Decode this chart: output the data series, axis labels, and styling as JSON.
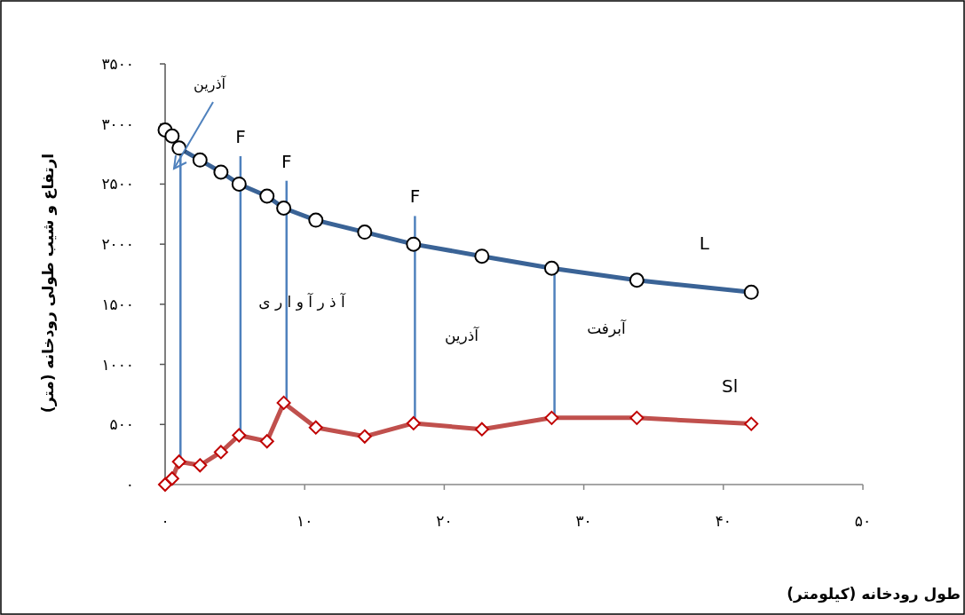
{
  "chart_data": {
    "type": "line",
    "xlabel": "طول رودخانه (کیلومتر)",
    "ylabel": "ارتفاع و شیب طولی رودخانه (متر)",
    "xlim": [
      0,
      50
    ],
    "ylim": [
      0,
      3500
    ],
    "xticks": [
      {
        "value": 0,
        "label": "۰"
      },
      {
        "value": 10,
        "label": "۱۰"
      },
      {
        "value": 20,
        "label": "۲۰"
      },
      {
        "value": 30,
        "label": "۳۰"
      },
      {
        "value": 40,
        "label": "۴۰"
      },
      {
        "value": 50,
        "label": "۵۰"
      }
    ],
    "yticks": [
      {
        "value": 0,
        "label": "۰"
      },
      {
        "value": 500,
        "label": "۵۰۰"
      },
      {
        "value": 1000,
        "label": "۱۰۰۰"
      },
      {
        "value": 1500,
        "label": "۱۵۰۰"
      },
      {
        "value": 2000,
        "label": "۲۰۰۰"
      },
      {
        "value": 2500,
        "label": "۲۵۰۰"
      },
      {
        "value": 3000,
        "label": "۳۰۰۰"
      },
      {
        "value": 3500,
        "label": "۳۵۰۰"
      }
    ],
    "x": [
      0,
      0.5,
      1.0,
      2.5,
      4.0,
      5.3,
      7.3,
      8.5,
      10.8,
      14.3,
      17.8,
      22.7,
      27.7,
      33.8,
      42.0
    ],
    "series": [
      {
        "name": "L",
        "color": "#3a6396",
        "marker": "circle",
        "values": [
          2950,
          2900,
          2800,
          2700,
          2600,
          2500,
          2400,
          2300,
          2200,
          2100,
          2000,
          1900,
          1800,
          1700,
          1600
        ]
      },
      {
        "name": "Sl",
        "color": "#c0504d",
        "marker": "diamond",
        "values": [
          0,
          50,
          190,
          160,
          270,
          410,
          360,
          680,
          475,
          400,
          510,
          460,
          555,
          555,
          505
        ]
      }
    ],
    "ref_lines": [
      {
        "axis": "x",
        "value": 1.1,
        "color": "#4f81bd"
      },
      {
        "axis": "x",
        "value": 5.4,
        "label": "F",
        "color": "#4f81bd"
      },
      {
        "axis": "x",
        "value": 8.7,
        "label": "F",
        "color": "#4f81bd"
      },
      {
        "axis": "x",
        "value": 17.9,
        "label": "F",
        "color": "#4f81bd"
      },
      {
        "axis": "x",
        "value": 27.9,
        "color": "#4f81bd"
      }
    ],
    "annotations": [
      "آذرین",
      "آ ذ ر آ و ا ر ی",
      "آذرین",
      "آبرفت"
    ],
    "grid": false
  }
}
